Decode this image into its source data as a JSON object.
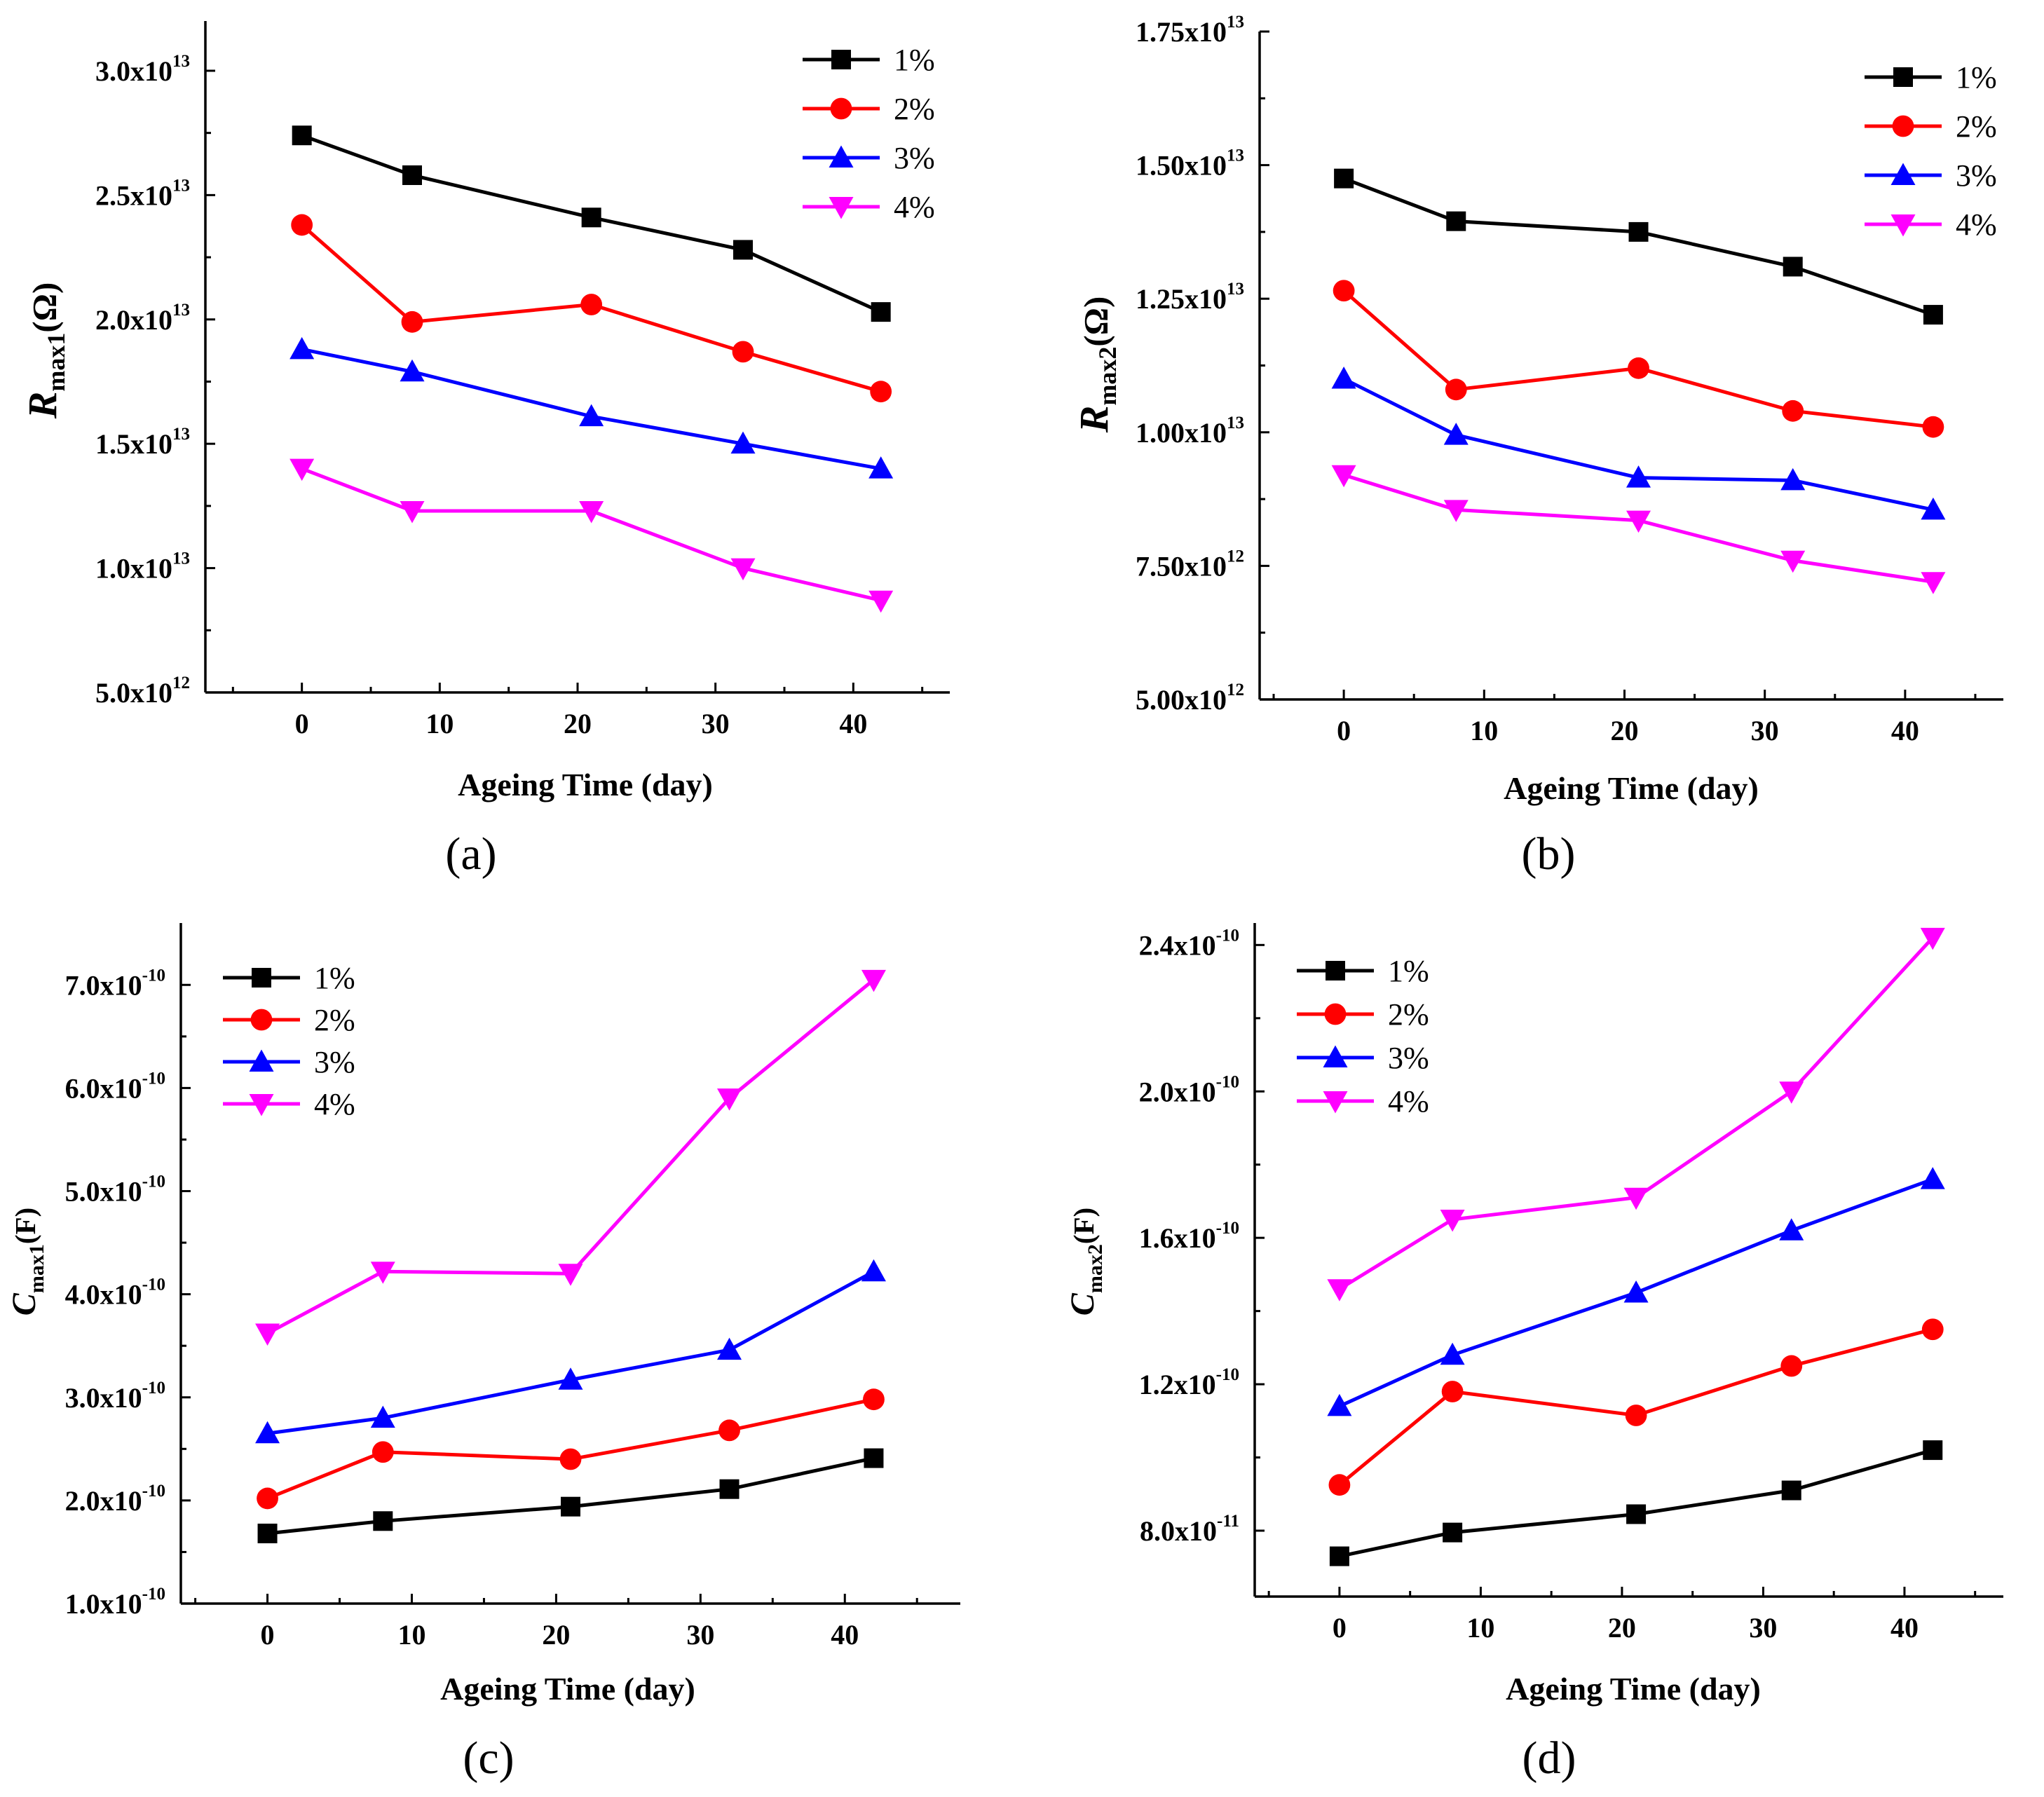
{
  "figure": {
    "background": "#ffffff"
  },
  "chart_data": [
    {
      "id": "a",
      "type": "line",
      "panel_label": "(a)",
      "xlabel": "Ageing  Time (day)",
      "ylabel": {
        "main": "R",
        "sub": "max1",
        "unit": "(Ω)"
      },
      "xlim": [
        -7,
        47
      ],
      "ylim": [
        5000000000000.0,
        32000000000000.0
      ],
      "xticks": [
        0,
        10,
        20,
        30,
        40
      ],
      "yticks": [
        {
          "value": 5000000000000.0,
          "mantissa": "5.0x10",
          "exp": "12"
        },
        {
          "value": 10000000000000.0,
          "mantissa": "1.0x10",
          "exp": "13"
        },
        {
          "value": 15000000000000.0,
          "mantissa": "1.5x10",
          "exp": "13"
        },
        {
          "value": 20000000000000.0,
          "mantissa": "2.0x10",
          "exp": "13"
        },
        {
          "value": 25000000000000.0,
          "mantissa": "2.5x10",
          "exp": "13"
        },
        {
          "value": 30000000000000.0,
          "mantissa": "3.0x10",
          "exp": "13"
        }
      ],
      "legend_position": "top-right",
      "x": [
        0,
        8,
        21,
        32,
        42
      ],
      "series": [
        {
          "name": "1%",
          "color": "#000000",
          "marker": "square",
          "values": [
            27400000000000.0,
            25800000000000.0,
            24100000000000.0,
            22800000000000.0,
            20300000000000.0
          ]
        },
        {
          "name": "2%",
          "color": "#ff0000",
          "marker": "circle",
          "values": [
            23800000000000.0,
            19900000000000.0,
            20600000000000.0,
            18700000000000.0,
            17100000000000.0
          ]
        },
        {
          "name": "3%",
          "color": "#0000ff",
          "marker": "triangle-up",
          "values": [
            18800000000000.0,
            17900000000000.0,
            16100000000000.0,
            15000000000000.0,
            14000000000000.0
          ]
        },
        {
          "name": "4%",
          "color": "#ff00ff",
          "marker": "triangle-down",
          "values": [
            14000000000000.0,
            12300000000000.0,
            12300000000000.0,
            10000000000000.0,
            8700000000000.0
          ]
        }
      ]
    },
    {
      "id": "b",
      "type": "line",
      "panel_label": "(b)",
      "xlabel": "Ageing  Time (day)",
      "ylabel": {
        "main": "R",
        "sub": "max2",
        "unit": "(Ω)"
      },
      "xlim": [
        -6,
        47
      ],
      "ylim": [
        5000000000000.0,
        17500000000000.0
      ],
      "xticks": [
        0,
        10,
        20,
        30,
        40
      ],
      "yticks": [
        {
          "value": 5000000000000.0,
          "mantissa": "5.00x10",
          "exp": "12"
        },
        {
          "value": 7500000000000.0,
          "mantissa": "7.50x10",
          "exp": "12"
        },
        {
          "value": 10000000000000.0,
          "mantissa": "1.00x10",
          "exp": "13"
        },
        {
          "value": 12500000000000.0,
          "mantissa": "1.25x10",
          "exp": "13"
        },
        {
          "value": 15000000000000.0,
          "mantissa": "1.50x10",
          "exp": "13"
        },
        {
          "value": 17500000000000.0,
          "mantissa": "1.75x10",
          "exp": "13"
        }
      ],
      "legend_position": "top-right",
      "x": [
        0,
        8,
        21,
        32,
        42
      ],
      "series": [
        {
          "name": "1%",
          "color": "#000000",
          "marker": "square",
          "values": [
            14750000000000.0,
            13950000000000.0,
            13750000000000.0,
            13100000000000.0,
            12200000000000.0
          ]
        },
        {
          "name": "2%",
          "color": "#ff0000",
          "marker": "circle",
          "values": [
            12650000000000.0,
            10800000000000.0,
            11200000000000.0,
            10400000000000.0,
            10100000000000.0
          ]
        },
        {
          "name": "3%",
          "color": "#0000ff",
          "marker": "triangle-up",
          "values": [
            11000000000000.0,
            9950000000000.0,
            9150000000000.0,
            9100000000000.0,
            8550000000000.0
          ]
        },
        {
          "name": "4%",
          "color": "#ff00ff",
          "marker": "triangle-down",
          "values": [
            9200000000000.0,
            8550000000000.0,
            8350000000000.0,
            7600000000000.0,
            7200000000000.0
          ]
        }
      ]
    },
    {
      "id": "c",
      "type": "line",
      "panel_label": "(c)",
      "xlabel": "Ageing  Time (day)",
      "ylabel": {
        "main": "C",
        "sub": "max1",
        "unit": "(F)"
      },
      "xlim": [
        -6,
        48
      ],
      "ylim": [
        1e-10,
        7.6e-10
      ],
      "xticks": [
        0,
        10,
        20,
        30,
        40
      ],
      "yticks": [
        {
          "value": 1e-10,
          "mantissa": "1.0x10",
          "exp": "-10"
        },
        {
          "value": 2e-10,
          "mantissa": "2.0x10",
          "exp": "-10"
        },
        {
          "value": 3e-10,
          "mantissa": "3.0x10",
          "exp": "-10"
        },
        {
          "value": 4e-10,
          "mantissa": "4.0x10",
          "exp": "-10"
        },
        {
          "value": 5e-10,
          "mantissa": "5.0x10",
          "exp": "-10"
        },
        {
          "value": 6e-10,
          "mantissa": "6.0x10",
          "exp": "-10"
        },
        {
          "value": 7e-10,
          "mantissa": "7.0x10",
          "exp": "-10"
        }
      ],
      "legend_position": "top-left",
      "x": [
        0,
        8,
        21,
        32,
        42
      ],
      "series": [
        {
          "name": "1%",
          "color": "#000000",
          "marker": "square",
          "values": [
            1.68e-10,
            1.8e-10,
            1.94e-10,
            2.11e-10,
            2.41e-10
          ]
        },
        {
          "name": "2%",
          "color": "#ff0000",
          "marker": "circle",
          "values": [
            2.02e-10,
            2.47e-10,
            2.4e-10,
            2.68e-10,
            2.98e-10
          ]
        },
        {
          "name": "3%",
          "color": "#0000ff",
          "marker": "triangle-up",
          "values": [
            2.65e-10,
            2.8e-10,
            3.17e-10,
            3.46e-10,
            4.22e-10
          ]
        },
        {
          "name": "4%",
          "color": "#ff00ff",
          "marker": "triangle-down",
          "values": [
            3.62e-10,
            4.22e-10,
            4.2e-10,
            5.9e-10,
            7.05e-10
          ]
        }
      ]
    },
    {
      "id": "d",
      "type": "line",
      "panel_label": "(d)",
      "xlabel": "Ageing Time (day)",
      "ylabel": {
        "main": "C",
        "sub": "max2",
        "unit": "(F)"
      },
      "xlim": [
        -6,
        47
      ],
      "ylim": [
        6.2e-11,
        2.46e-10
      ],
      "xticks": [
        0,
        10,
        20,
        30,
        40
      ],
      "yticks": [
        {
          "value": 8e-11,
          "mantissa": "8.0x10",
          "exp": "-11"
        },
        {
          "value": 1.2e-10,
          "mantissa": "1.2x10",
          "exp": "-10"
        },
        {
          "value": 1.6e-10,
          "mantissa": "1.6x10",
          "exp": "-10"
        },
        {
          "value": 2e-10,
          "mantissa": "2.0x10",
          "exp": "-10"
        },
        {
          "value": 2.4e-10,
          "mantissa": "2.4x10",
          "exp": "-10"
        }
      ],
      "legend_position": "top-left",
      "x": [
        0,
        8,
        21,
        32,
        42
      ],
      "series": [
        {
          "name": "1%",
          "color": "#000000",
          "marker": "square",
          "values": [
            7.3e-11,
            7.95e-11,
            8.45e-11,
            9.1e-11,
            1.02e-10
          ]
        },
        {
          "name": "2%",
          "color": "#ff0000",
          "marker": "circle",
          "values": [
            9.25e-11,
            1.18e-10,
            1.115e-10,
            1.25e-10,
            1.35e-10
          ]
        },
        {
          "name": "3%",
          "color": "#0000ff",
          "marker": "triangle-up",
          "values": [
            1.14e-10,
            1.28e-10,
            1.45e-10,
            1.62e-10,
            1.76e-10
          ]
        },
        {
          "name": "4%",
          "color": "#ff00ff",
          "marker": "triangle-down",
          "values": [
            1.46e-10,
            1.65e-10,
            1.71e-10,
            2e-10,
            2.42e-10
          ]
        }
      ]
    }
  ]
}
